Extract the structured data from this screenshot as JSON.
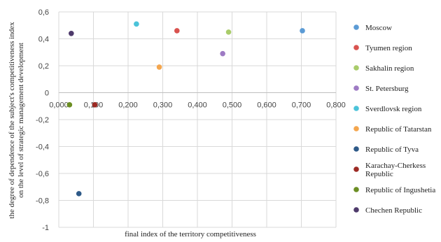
{
  "chart_data": {
    "type": "scatter",
    "xlabel": "final index of the territory competitiveness",
    "ylabel_lines": [
      "the degree of dependence of the subject's competitiveness index",
      "on the level of strategic management development"
    ],
    "xlim": [
      0,
      0.8
    ],
    "ylim": [
      -1,
      0.6
    ],
    "x_ticks": [
      "0,000",
      "0,100",
      "0,200",
      "0,300",
      "0,400",
      "0,500",
      "0,600",
      "0,700",
      "0,800"
    ],
    "y_ticks": [
      "0,6",
      "0,4",
      "0,2",
      "0",
      "-0,2",
      "-0,4",
      "-0,6",
      "-0,8",
      "-1"
    ],
    "grid": true,
    "legend_position": "right",
    "series": [
      {
        "name": "Moscow",
        "color": "#5B9BD5",
        "x": 0.703,
        "y": 0.46
      },
      {
        "name": "Tyumen region",
        "color": "#D9534F",
        "x": 0.341,
        "y": 0.46
      },
      {
        "name": "Sakhalin region",
        "color": "#A9CC6A",
        "x": 0.49,
        "y": 0.45
      },
      {
        "name": "St. Petersburg",
        "color": "#9E7BC4",
        "x": 0.473,
        "y": 0.29
      },
      {
        "name": "Sverdlovsk region",
        "color": "#4BC3D9",
        "x": 0.224,
        "y": 0.51
      },
      {
        "name": "Republic of Tatarstan",
        "color": "#F4A64E",
        "x": 0.29,
        "y": 0.19
      },
      {
        "name": "Republic of Tyva",
        "color": "#2E5A88",
        "x": 0.058,
        "y": -0.75
      },
      {
        "name": "Karachay-Cherkess Republic",
        "name_lines": [
          "Karachay-Cherkess",
          "Republic"
        ],
        "color": "#9C2A24",
        "x": 0.104,
        "y": -0.09
      },
      {
        "name": "Republic of Ingushetia",
        "color": "#6B8E23",
        "x": 0.031,
        "y": -0.09
      },
      {
        "name": "Chechen Republic",
        "color": "#4E3A6B",
        "x": 0.036,
        "y": 0.44
      }
    ]
  }
}
